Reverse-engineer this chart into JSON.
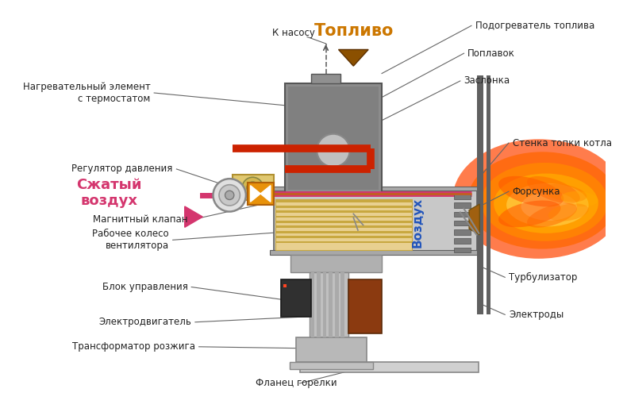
{
  "bg_color": "#ffffff",
  "labels": {
    "fuel_heater": "Подогреватель топлива",
    "float_lbl": "Поплавок",
    "damper": "Заслонка",
    "boiler_wall": "Стенка топки котла",
    "nozzle": "Форсунка",
    "turbulizer": "Турбулизатор",
    "electrodes": "Электроды",
    "to_pump": "К насосу",
    "fuel": "Топливо",
    "heating_element": "Нагревательный элемент\nс термостатом",
    "pressure_reg": "Регулятор давления",
    "compressed_air": "Сжатый\nвоздух",
    "magnetic_valve": "Магнитный клапан",
    "impeller": "Рабочее колесо\nвентилятора",
    "control_unit": "Блок управления",
    "electric_motor": "Электродвигатель",
    "ignition_transformer": "Трансформатор розжига",
    "burner_flange": "Фланец горелки",
    "air": "Воздух"
  },
  "colors": {
    "gray_body": "#909090",
    "gray_dark": "#606060",
    "gray_light": "#c8c8c8",
    "gray_med": "#a8a8a8",
    "red_pipe": "#cc2200",
    "pink_pipe": "#d4366e",
    "orange_valve": "#e8920a",
    "beige_fan": "#e8d090",
    "beige_fan_dark": "#c8a840",
    "black_ctrl": "#303030",
    "brown_motor": "#8b3a10",
    "flame1": "#ff4400",
    "flame2": "#ff6600",
    "flame3": "#ff8800",
    "flame4": "#ffaa00",
    "flame5": "#ffcc44",
    "flame6": "#ffeeaa",
    "brown_fuel": "#8b5000",
    "line_color": "#666666",
    "text_color": "#222222",
    "air_color": "#2255bb",
    "compressed_color": "#d4366e",
    "fuel_color": "#cc7700"
  }
}
